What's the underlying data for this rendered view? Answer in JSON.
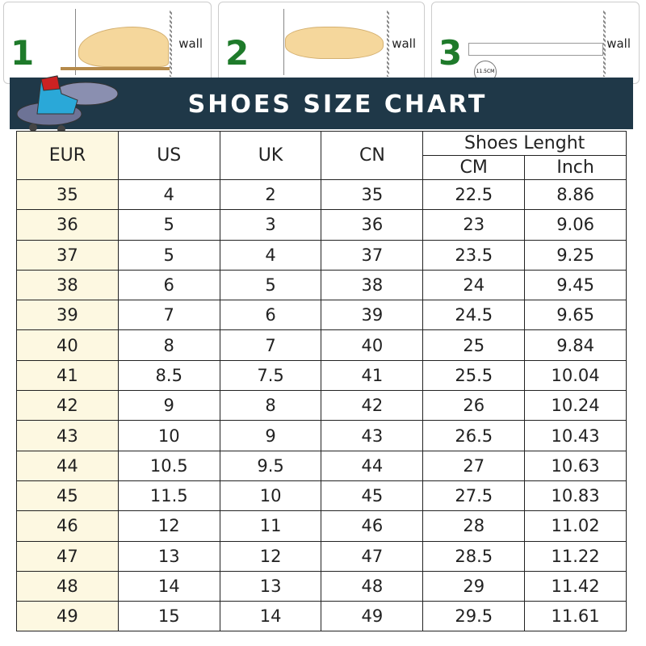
{
  "steps": [
    {
      "number": "1",
      "label": "wall"
    },
    {
      "number": "2",
      "label": "wall"
    },
    {
      "number": "3",
      "label": "wall",
      "measure": "11.5CM"
    }
  ],
  "title": "SHOES SIZE CHART",
  "headers": {
    "eur": "EUR",
    "us": "US",
    "uk": "UK",
    "cn": "CN",
    "length": "Shoes Lenght",
    "cm": "CM",
    "inch": "Inch"
  },
  "rows": [
    [
      "35",
      "4",
      "2",
      "35",
      "22.5",
      "8.86"
    ],
    [
      "36",
      "5",
      "3",
      "36",
      "23",
      "9.06"
    ],
    [
      "37",
      "5",
      "4",
      "37",
      "23.5",
      "9.25"
    ],
    [
      "38",
      "6",
      "5",
      "38",
      "24",
      "9.45"
    ],
    [
      "39",
      "7",
      "6",
      "39",
      "24.5",
      "9.65"
    ],
    [
      "40",
      "8",
      "7",
      "40",
      "25",
      "9.84"
    ],
    [
      "41",
      "8.5",
      "7.5",
      "41",
      "25.5",
      "10.04"
    ],
    [
      "42",
      "9",
      "8",
      "42",
      "26",
      "10.24"
    ],
    [
      "43",
      "10",
      "9",
      "43",
      "26.5",
      "10.43"
    ],
    [
      "44",
      "10.5",
      "9.5",
      "44",
      "27",
      "10.63"
    ],
    [
      "45",
      "11.5",
      "10",
      "45",
      "27.5",
      "10.83"
    ],
    [
      "46",
      "12",
      "11",
      "46",
      "28",
      "11.02"
    ],
    [
      "47",
      "13",
      "12",
      "47",
      "28.5",
      "11.22"
    ],
    [
      "48",
      "14",
      "13",
      "48",
      "29",
      "11.42"
    ],
    [
      "49",
      "15",
      "14",
      "49",
      "29.5",
      "11.61"
    ]
  ],
  "colors": {
    "banner": "#1f3848",
    "eur_column": "#fdf8e1",
    "step_number": "#1e7a2a"
  }
}
